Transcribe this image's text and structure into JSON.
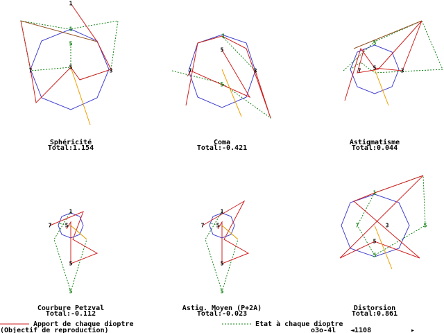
{
  "panels": [
    {
      "title": "Sphéricité",
      "total": "Total:1.154",
      "markers": [
        "1",
        "1",
        "5",
        "5",
        "7",
        "3"
      ]
    },
    {
      "title": "Coma",
      "total": "Total:-0.421",
      "markers": [
        "1",
        "5",
        "5",
        "7",
        "3"
      ]
    },
    {
      "title": "Astigmatisme",
      "total": "Total:0.044",
      "markers": [
        "5",
        "5",
        "7",
        "3"
      ]
    },
    {
      "title": "Courbure Petzval",
      "total": "Total:-0.112",
      "markers": [
        "1",
        "7",
        "5",
        "5",
        "5"
      ]
    },
    {
      "title": "Astig. Moyen (P+2A)",
      "total": "Total:-0.023",
      "markers": [
        "1",
        "7",
        "5",
        "5",
        "5"
      ]
    },
    {
      "title": "Distorsion",
      "total": "Total:0.861",
      "markers": [
        "1",
        "7",
        "3",
        "5",
        "5",
        "5"
      ]
    }
  ],
  "legend": {
    "contribution": "Apport de chaque dioptre",
    "state": "Etat à chaque dioptre"
  },
  "status": {
    "system": "(Objectif de reproduction)",
    "file": "o3o-4l",
    "counter": "◄1108",
    "arrow": "▸"
  }
}
